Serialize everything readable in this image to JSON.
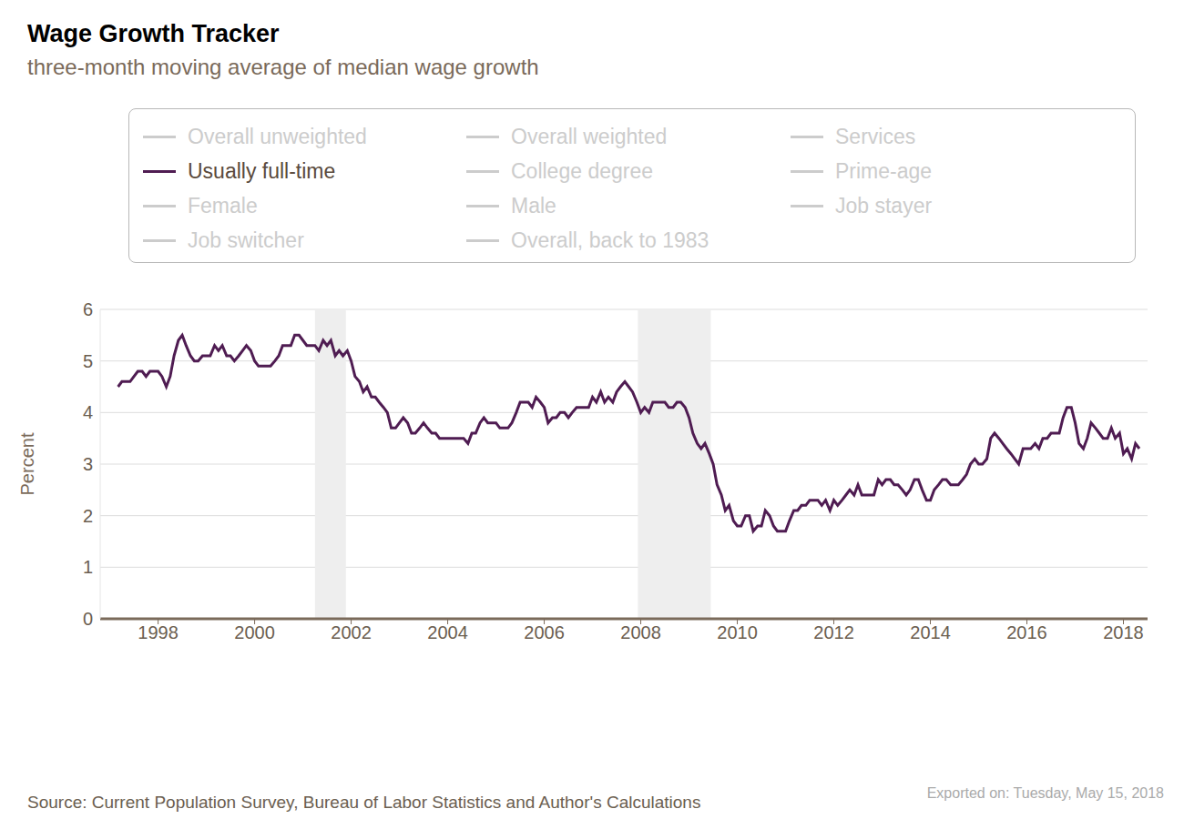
{
  "chart_data": {
    "type": "line",
    "title": "Wage Growth Tracker",
    "subtitle": "three-month moving average of median wage growth",
    "y_label": "Percent",
    "source": "Source: Current Population Survey, Bureau of Labor Statistics and Author's Calculations",
    "note": "Exported on: Tuesday, May 15, 2018",
    "legend_entries": [
      "Overall unweighted",
      "Overall weighted",
      "Services",
      "Usually full-time",
      "College degree",
      "Prime-age",
      "Female",
      "Male",
      "Job stayer",
      "Job switcher",
      "Overall, back to 1983"
    ],
    "x": [
      1997.17,
      1997.25,
      1997.33,
      1997.42,
      1997.5,
      1997.58,
      1997.67,
      1997.75,
      1997.83,
      1997.92,
      1998,
      1998.08,
      1998.17,
      1998.25,
      1998.33,
      1998.42,
      1998.5,
      1998.58,
      1998.67,
      1998.75,
      1998.83,
      1998.92,
      1999,
      1999.08,
      1999.17,
      1999.25,
      1999.33,
      1999.42,
      1999.5,
      1999.58,
      1999.67,
      1999.75,
      1999.83,
      1999.92,
      2000,
      2000.08,
      2000.17,
      2000.25,
      2000.33,
      2000.42,
      2000.5,
      2000.58,
      2000.67,
      2000.75,
      2000.83,
      2000.92,
      2001,
      2001.08,
      2001.17,
      2001.25,
      2001.33,
      2001.42,
      2001.5,
      2001.58,
      2001.67,
      2001.75,
      2001.83,
      2001.92,
      2002,
      2002.08,
      2002.17,
      2002.25,
      2002.33,
      2002.42,
      2002.5,
      2002.58,
      2002.67,
      2002.75,
      2002.83,
      2002.92,
      2003,
      2003.08,
      2003.17,
      2003.25,
      2003.33,
      2003.42,
      2003.5,
      2003.58,
      2003.67,
      2003.75,
      2003.83,
      2003.92,
      2004,
      2004.08,
      2004.17,
      2004.25,
      2004.33,
      2004.42,
      2004.5,
      2004.58,
      2004.67,
      2004.75,
      2004.83,
      2004.92,
      2005,
      2005.08,
      2005.17,
      2005.25,
      2005.33,
      2005.42,
      2005.5,
      2005.58,
      2005.67,
      2005.75,
      2005.83,
      2005.92,
      2006,
      2006.08,
      2006.17,
      2006.25,
      2006.33,
      2006.42,
      2006.5,
      2006.58,
      2006.67,
      2006.75,
      2006.83,
      2006.92,
      2007,
      2007.08,
      2007.17,
      2007.25,
      2007.33,
      2007.42,
      2007.5,
      2007.58,
      2007.67,
      2007.75,
      2007.83,
      2007.92,
      2008,
      2008.08,
      2008.17,
      2008.25,
      2008.33,
      2008.42,
      2008.5,
      2008.58,
      2008.67,
      2008.75,
      2008.83,
      2008.92,
      2009,
      2009.08,
      2009.17,
      2009.25,
      2009.33,
      2009.42,
      2009.5,
      2009.58,
      2009.67,
      2009.75,
      2009.83,
      2009.92,
      2010,
      2010.08,
      2010.17,
      2010.25,
      2010.33,
      2010.42,
      2010.5,
      2010.58,
      2010.67,
      2010.75,
      2010.83,
      2010.92,
      2011,
      2011.08,
      2011.17,
      2011.25,
      2011.33,
      2011.42,
      2011.5,
      2011.58,
      2011.67,
      2011.75,
      2011.83,
      2011.92,
      2012,
      2012.08,
      2012.17,
      2012.25,
      2012.33,
      2012.42,
      2012.5,
      2012.58,
      2012.67,
      2012.75,
      2012.83,
      2012.92,
      2013,
      2013.08,
      2013.17,
      2013.25,
      2013.33,
      2013.42,
      2013.5,
      2013.58,
      2013.67,
      2013.75,
      2013.83,
      2013.92,
      2014,
      2014.08,
      2014.17,
      2014.25,
      2014.33,
      2014.42,
      2014.5,
      2014.58,
      2014.67,
      2014.75,
      2014.83,
      2014.92,
      2015,
      2015.08,
      2015.17,
      2015.25,
      2015.33,
      2015.42,
      2015.5,
      2015.58,
      2015.67,
      2015.75,
      2015.83,
      2015.92,
      2016,
      2016.08,
      2016.17,
      2016.25,
      2016.33,
      2016.42,
      2016.5,
      2016.58,
      2016.67,
      2016.75,
      2016.83,
      2016.92,
      2017,
      2017.08,
      2017.17,
      2017.25,
      2017.33,
      2017.42,
      2017.5,
      2017.58,
      2017.67,
      2017.75,
      2017.83,
      2017.92,
      2018,
      2018.08,
      2018.17,
      2018.25,
      2018.33
    ],
    "series": [
      {
        "name": "Usually full-time",
        "color": "#4f1c52",
        "values": [
          4.5,
          4.6,
          4.6,
          4.6,
          4.7,
          4.8,
          4.8,
          4.7,
          4.8,
          4.8,
          4.8,
          4.7,
          4.5,
          4.7,
          5.1,
          5.4,
          5.5,
          5.3,
          5.1,
          5.0,
          5.0,
          5.1,
          5.1,
          5.1,
          5.3,
          5.2,
          5.3,
          5.1,
          5.1,
          5.0,
          5.1,
          5.2,
          5.3,
          5.2,
          5.0,
          4.9,
          4.9,
          4.9,
          4.9,
          5.0,
          5.1,
          5.3,
          5.3,
          5.3,
          5.5,
          5.5,
          5.4,
          5.3,
          5.3,
          5.3,
          5.2,
          5.4,
          5.3,
          5.4,
          5.1,
          5.2,
          5.1,
          5.2,
          5.0,
          4.7,
          4.6,
          4.4,
          4.5,
          4.3,
          4.3,
          4.2,
          4.1,
          4.0,
          3.7,
          3.7,
          3.8,
          3.9,
          3.8,
          3.6,
          3.6,
          3.7,
          3.8,
          3.7,
          3.6,
          3.6,
          3.5,
          3.5,
          3.5,
          3.5,
          3.5,
          3.5,
          3.5,
          3.4,
          3.6,
          3.6,
          3.8,
          3.9,
          3.8,
          3.8,
          3.8,
          3.7,
          3.7,
          3.7,
          3.8,
          4.0,
          4.2,
          4.2,
          4.2,
          4.1,
          4.3,
          4.2,
          4.1,
          3.8,
          3.9,
          3.9,
          4.0,
          4.0,
          3.9,
          4.0,
          4.1,
          4.1,
          4.1,
          4.1,
          4.3,
          4.2,
          4.4,
          4.2,
          4.3,
          4.2,
          4.4,
          4.5,
          4.6,
          4.5,
          4.4,
          4.2,
          4.0,
          4.1,
          4.0,
          4.2,
          4.2,
          4.2,
          4.2,
          4.1,
          4.1,
          4.2,
          4.2,
          4.1,
          3.9,
          3.6,
          3.4,
          3.3,
          3.4,
          3.2,
          3.0,
          2.6,
          2.4,
          2.1,
          2.2,
          1.9,
          1.8,
          1.8,
          2.0,
          2.0,
          1.7,
          1.8,
          1.8,
          2.1,
          2.0,
          1.8,
          1.7,
          1.7,
          1.7,
          1.9,
          2.1,
          2.1,
          2.2,
          2.2,
          2.3,
          2.3,
          2.3,
          2.2,
          2.3,
          2.1,
          2.3,
          2.2,
          2.3,
          2.4,
          2.5,
          2.4,
          2.6,
          2.4,
          2.4,
          2.4,
          2.4,
          2.7,
          2.6,
          2.7,
          2.7,
          2.6,
          2.6,
          2.5,
          2.4,
          2.5,
          2.7,
          2.7,
          2.5,
          2.3,
          2.3,
          2.5,
          2.6,
          2.7,
          2.7,
          2.6,
          2.6,
          2.6,
          2.7,
          2.8,
          3.0,
          3.1,
          3.0,
          3.0,
          3.1,
          3.5,
          3.6,
          3.5,
          3.4,
          3.3,
          3.2,
          3.1,
          3.0,
          3.3,
          3.3,
          3.3,
          3.4,
          3.3,
          3.5,
          3.5,
          3.6,
          3.6,
          3.6,
          3.9,
          4.1,
          4.1,
          3.8,
          3.4,
          3.3,
          3.5,
          3.8,
          3.7,
          3.6,
          3.5,
          3.5,
          3.7,
          3.5,
          3.6,
          3.2,
          3.3,
          3.1,
          3.4,
          3.3
        ]
      }
    ],
    "recessions": [
      {
        "start": 2001.25,
        "end": 2001.89
      },
      {
        "start": 2007.94,
        "end": 2009.45
      }
    ],
    "xlim": [
      1996.8,
      2018.5
    ],
    "xticks": [
      1998,
      2000,
      2002,
      2004,
      2006,
      2008,
      2010,
      2012,
      2014,
      2016,
      2018
    ],
    "ylim": [
      0,
      6
    ],
    "yticks": [
      0,
      1,
      2,
      3,
      4,
      5,
      6
    ],
    "grid": true
  }
}
